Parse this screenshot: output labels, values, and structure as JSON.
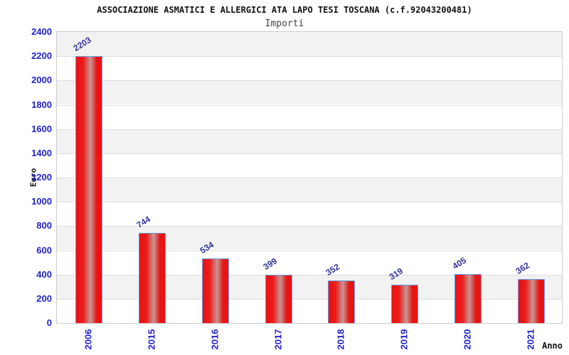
{
  "chart_data": {
    "type": "bar",
    "title": "ASSOCIAZIONE ASMATICI E ALLERGICI ATA LAPO TESI TOSCANA (c.f.92043200481)",
    "subtitle": "Importi",
    "xlabel": "Anno",
    "ylabel": "Euro",
    "categories": [
      "2006",
      "2015",
      "2016",
      "2017",
      "2018",
      "2019",
      "2020",
      "2021"
    ],
    "values": [
      2203,
      744,
      534,
      399,
      352,
      319,
      405,
      362
    ],
    "ylim": [
      0,
      2400
    ],
    "ytick_step": 200,
    "grid": "horizontal-only",
    "legend": "none",
    "bands": "alternating gray/white every 200 units, gray starts at top (2200-2400)",
    "colors": {
      "bar_red": "#ec100f",
      "bar_highlight": "#c79595",
      "bar_border": "#63a2ea",
      "axis_tick_label": "#2222cc",
      "value_label": "#333399",
      "band_gray": "#f2f2f2",
      "gridline": "#dddddd",
      "frame": "#cccccc",
      "title": "#111111",
      "subtitle": "#444444"
    }
  }
}
